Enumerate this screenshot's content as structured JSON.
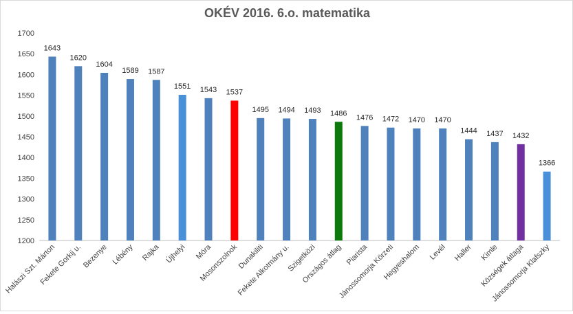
{
  "chart_data": {
    "type": "bar",
    "title": "OKÉV 2016. 6.o. matematika",
    "xlabel": "",
    "ylabel": "",
    "ylim": [
      1200,
      1700
    ],
    "yticks": [
      1200,
      1250,
      1300,
      1350,
      1400,
      1450,
      1500,
      1550,
      1600,
      1650,
      1700
    ],
    "grid": false,
    "legend": "none",
    "data_labels": true,
    "categories": [
      "Halászi Szt. Márton",
      "Fekete Gorkij u.",
      "Bezenye",
      "Lébény",
      "Rajka",
      "Újhelyi",
      "Móra",
      "Mosonszolnok",
      "Dunakiliti",
      "Fekete Alkotmány u.",
      "Szigetközi",
      "Országos átlag",
      "Piarista",
      "Jánossomorja Körzeti",
      "Hegyeshalom",
      "Levél",
      "Haller",
      "Kimle",
      "Községek átlaga",
      "Jánossomorja Klafszky"
    ],
    "values": [
      1643,
      1620,
      1604,
      1589,
      1587,
      1551,
      1543,
      1537,
      1495,
      1494,
      1493,
      1486,
      1476,
      1472,
      1470,
      1470,
      1444,
      1437,
      1432,
      1366
    ],
    "colors": [
      "#4f81bd",
      "#4f81bd",
      "#4f81bd",
      "#4f81bd",
      "#4f81bd",
      "#4a90d9",
      "#4f81bd",
      "#ff0000",
      "#4f81bd",
      "#4f81bd",
      "#4f81bd",
      "#0b7a0b",
      "#4f81bd",
      "#4f81bd",
      "#4f81bd",
      "#4f81bd",
      "#4f81bd",
      "#4f81bd",
      "#7030a0",
      "#4a90d9"
    ]
  }
}
